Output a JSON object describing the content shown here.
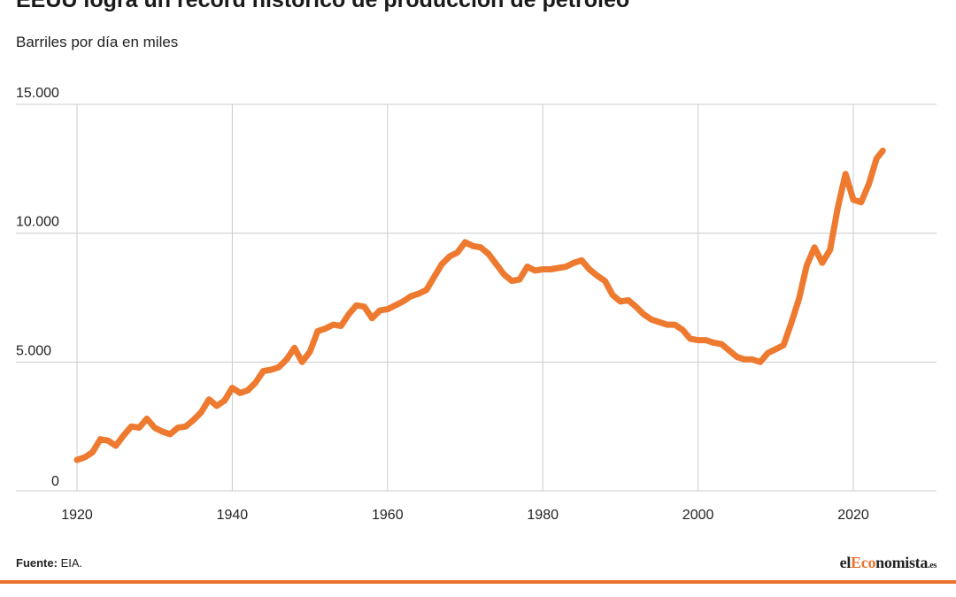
{
  "title": "EEUU logra un récord histórico de producción de petróleo",
  "subtitle": "Barriles por día en miles",
  "footer": {
    "source_label": "Fuente:",
    "source_value": "EIA."
  },
  "brand": {
    "part1": "el",
    "part2": "Eco",
    "part3": "nomista",
    "part4": ".es"
  },
  "colors": {
    "line": "#ee7a30",
    "grid": "#cccccc",
    "accent": "#e8732d"
  },
  "chart_data": {
    "type": "line",
    "title": "EEUU logra un récord histórico de producción de petróleo",
    "ylabel": "Barriles por día en miles",
    "xlim": [
      1920,
      2024
    ],
    "ylim": [
      0,
      15000
    ],
    "grid": true,
    "x_ticks": [
      1920,
      1940,
      1960,
      1980,
      2000,
      2020
    ],
    "y_ticks": [
      0,
      5000,
      10000,
      15000
    ],
    "y_tick_labels": [
      "0",
      "5.000",
      "10.000",
      "15.000"
    ],
    "series": [
      {
        "x": [
          1920,
          1921,
          1922,
          1923,
          1924,
          1925,
          1926,
          1927,
          1928,
          1929,
          1930,
          1931,
          1932,
          1933,
          1934,
          1935,
          1936,
          1937,
          1938,
          1939,
          1940,
          1941,
          1942,
          1943,
          1944,
          1945,
          1946,
          1947,
          1948,
          1949,
          1950,
          1951,
          1952,
          1953,
          1954,
          1955,
          1956,
          1957,
          1958,
          1959,
          1960,
          1961,
          1962,
          1963,
          1964,
          1965,
          1966,
          1967,
          1968,
          1969,
          1970,
          1971,
          1972,
          1973,
          1974,
          1975,
          1976,
          1977,
          1978,
          1979,
          1980,
          1981,
          1982,
          1983,
          1984,
          1985,
          1986,
          1987,
          1988,
          1989,
          1990,
          1991,
          1992,
          1993,
          1994,
          1995,
          1996,
          1997,
          1998,
          1999,
          2000,
          2001,
          2002,
          2003,
          2004,
          2005,
          2006,
          2007,
          2008,
          2009,
          2010,
          2011,
          2012,
          2013,
          2014,
          2015,
          2016,
          2017,
          2018,
          2019,
          2020,
          2021,
          2022,
          2023,
          2023.8
        ],
        "values": [
          1200,
          1300,
          1500,
          2000,
          1950,
          1750,
          2150,
          2500,
          2450,
          2800,
          2450,
          2300,
          2200,
          2450,
          2500,
          2750,
          3050,
          3550,
          3300,
          3500,
          4000,
          3800,
          3900,
          4200,
          4650,
          4700,
          4800,
          5100,
          5550,
          5000,
          5400,
          6200,
          6300,
          6450,
          6400,
          6850,
          7200,
          7150,
          6700,
          7000,
          7050,
          7200,
          7350,
          7550,
          7650,
          7800,
          8300,
          8800,
          9100,
          9250,
          9650,
          9500,
          9450,
          9200,
          8800,
          8400,
          8150,
          8200,
          8700,
          8550,
          8600,
          8600,
          8650,
          8700,
          8850,
          8950,
          8600,
          8350,
          8150,
          7600,
          7350,
          7400,
          7150,
          6850,
          6650,
          6550,
          6450,
          6450,
          6250,
          5900,
          5850,
          5850,
          5750,
          5700,
          5450,
          5200,
          5100,
          5100,
          5000,
          5350,
          5500,
          5650,
          6500,
          7450,
          8750,
          9450,
          8850,
          9350,
          11000,
          12300,
          11300,
          11200,
          11900,
          12900,
          13200
        ]
      }
    ]
  }
}
